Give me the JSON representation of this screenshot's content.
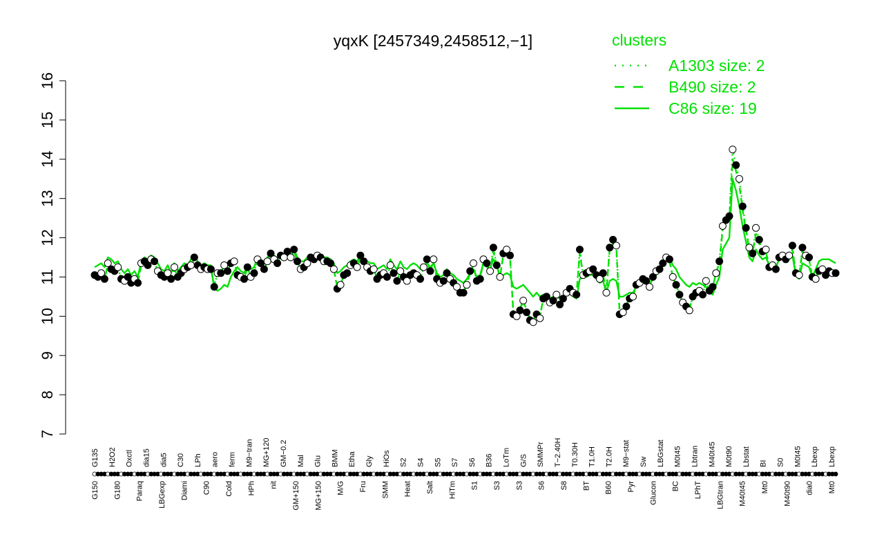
{
  "chart_data": {
    "type": "line",
    "title": "yqxK [2457349,2458512,−1]",
    "xlabel": "",
    "ylabel": "",
    "ylim": [
      7,
      16
    ],
    "yticks": [
      7,
      8,
      9,
      10,
      11,
      12,
      13,
      14,
      15,
      16
    ],
    "colors": {
      "accent": "#00e000",
      "axis": "#000000",
      "point_fill_dark": "#000000",
      "point_fill_light": "#ffffff"
    },
    "legend": {
      "title": "clusters",
      "placement": "top-right",
      "entries": [
        {
          "label": "A1303 size: 2",
          "style": "dotted"
        },
        {
          "label": "B490 size: 2",
          "style": "dashed"
        },
        {
          "label": "C86 size: 19",
          "style": "solid"
        }
      ]
    },
    "labels_top": [
      "G135",
      "H2O2",
      "Oxctl",
      "dia15",
      "dia5",
      "C30",
      "LPh",
      "aero",
      "ferm",
      "M9−tran",
      "MG+120",
      "GM−0.2",
      "Mal",
      "Glu",
      "BMM",
      "Etha",
      "Gly",
      "HiOs",
      "S2",
      "S4",
      "S5",
      "S7",
      "S6",
      "B36",
      "LoTm",
      "G/S",
      "SMMPr",
      "T−2.40H",
      "T0.30H",
      "T1.0H",
      "T2.0H",
      "M9−stat",
      "Sw",
      "LBGstat",
      "M0t45",
      "Lbtran",
      "M40t45",
      "M0t90",
      "Lbstat",
      "BI",
      "S0",
      "M0t45",
      "Lbexp",
      "Lbexp"
    ],
    "labels_bottom": [
      "G150",
      "G180",
      "Paraq",
      "LBGexp",
      "Diami",
      "C90",
      "Cold",
      "HPh",
      "nit",
      "GM+150",
      "MG+150",
      "M/G",
      "Fru",
      "SMM",
      "Heat",
      "Salt",
      "HiTm",
      "S1",
      "S3",
      "S3",
      "S6",
      "S8",
      "BT",
      "B60",
      "Pyr",
      "Glucon",
      "BC",
      "LPhT",
      "LBGtran",
      "M40t45",
      "Mt0",
      "M40t90",
      "dia0",
      "Mt0"
    ],
    "points": [
      [
        11.05,
        11.0,
        11.1,
        10.95,
        11.35,
        11.2,
        11.15,
        11.25,
        10.95,
        10.9,
        11.0,
        10.85,
        10.95,
        10.85,
        11.35,
        11.4,
        11.3,
        11.45,
        11.4,
        11.15,
        11.05,
        11.0,
        11.1,
        10.95,
        11.25,
        11.0,
        11.1,
        11.2,
        11.25,
        11.3,
        11.5,
        11.3,
        11.2,
        11.25,
        11.2,
        11.2,
        10.75,
        11.1,
        11.1,
        11.3,
        11.15,
        11.35,
        11.4,
        11.05,
        11.0,
        10.95,
        11.25,
        11.0,
        11.1,
        11.45,
        11.35,
        11.2,
        11.4,
        11.6,
        11.45,
        11.35,
        11.55,
        11.5,
        11.65,
        11.5,
        11.7,
        11.4,
        11.2,
        11.25,
        11.35,
        11.5,
        11.45,
        11.55,
        11.5,
        11.4,
        11.4,
        11.35,
        11.2,
        10.7,
        10.8,
        11.05,
        11.1,
        11.3,
        11.35,
        11.25,
        11.55,
        11.4,
        11.25,
        11.15,
        11.2,
        10.95,
        11.05,
        11.1,
        11.0,
        11.3,
        11.1,
        10.9,
        11.15,
        11.0,
        10.9,
        11.05,
        11.1,
        11.05,
        10.95,
        11.25,
        11.45,
        11.15,
        11.45,
        10.95,
        10.85,
        10.9,
        11.1,
        10.95,
        10.85,
        10.75,
        10.6,
        10.6,
        10.8,
        11.15,
        11.35,
        10.9,
        10.95,
        11.45,
        11.35,
        11.15,
        11.75,
        11.3,
        11.0,
        11.6,
        11.7,
        11.55,
        10.05,
        10.0,
        10.15,
        10.4,
        10.1,
        9.9,
        9.85,
        10.05,
        9.95,
        10.45,
        10.5,
        10.35,
        10.4,
        10.55,
        10.3,
        10.45,
        10.6,
        10.7,
        10.6,
        10.55,
        11.7,
        11.05,
        11.1,
        11.15,
        11.2,
        11.05,
        10.95,
        11.1,
        10.6,
        11.75,
        11.95,
        11.8,
        10.05,
        10.1,
        10.25,
        10.45,
        10.5,
        10.8,
        10.85,
        10.95,
        10.9,
        10.75,
        11.0,
        11.15,
        11.2,
        11.35,
        11.5,
        11.45,
        11.0,
        10.8,
        10.55,
        10.35,
        10.25,
        10.15,
        10.5,
        10.6,
        10.65,
        10.55,
        10.9,
        10.65,
        10.75,
        11.1,
        11.4,
        12.3,
        12.45,
        12.55,
        14.25,
        13.85,
        13.5,
        12.8,
        12.25,
        11.75,
        11.6,
        12.25,
        11.95,
        11.65,
        11.7,
        11.25,
        11.3,
        11.2,
        11.5,
        11.55,
        11.45,
        11.55,
        11.8,
        11.1,
        11.05,
        11.75,
        11.55,
        11.5,
        11.0,
        10.95,
        11.15,
        11.2,
        11.05,
        11.15,
        11.1,
        11.1
      ],
      [
        11.05,
        11.0,
        11.1,
        10.95,
        11.3,
        11.2,
        11.15,
        11.25,
        10.95,
        10.9,
        11.0,
        10.85,
        10.95,
        10.85,
        11.3,
        11.35,
        11.3,
        11.4,
        11.4,
        11.15,
        11.05,
        11.0,
        11.1,
        10.95,
        11.2,
        11.0,
        11.1,
        11.2,
        11.25,
        11.3,
        11.45,
        11.3,
        11.2,
        11.25,
        11.2,
        11.2,
        10.8,
        11.1,
        11.1,
        11.3,
        11.15,
        11.35,
        11.4,
        11.05,
        11.0,
        10.95,
        11.25,
        11.0,
        11.1,
        11.45,
        11.35,
        11.2,
        11.4,
        11.55,
        11.45,
        11.35,
        11.5,
        11.5,
        11.6,
        11.5,
        11.65,
        11.4,
        11.2,
        11.25,
        11.35,
        11.45,
        11.45,
        11.5,
        11.5,
        11.4,
        11.4,
        11.35,
        11.2,
        10.75,
        10.8,
        11.05,
        11.1,
        11.3,
        11.3,
        11.25,
        11.5,
        11.4,
        11.25,
        11.15,
        11.2,
        10.95,
        11.05,
        11.1,
        11.0,
        11.3,
        11.1,
        10.9,
        11.15,
        11.0,
        10.9,
        11.05,
        11.1,
        11.05,
        10.95,
        11.25,
        11.4,
        11.15,
        11.4,
        10.95,
        10.85,
        10.9,
        11.1,
        10.95,
        10.85,
        10.75,
        10.65,
        10.65,
        10.8,
        11.1,
        11.3,
        10.9,
        10.95,
        11.4,
        11.3,
        11.15,
        11.65,
        11.3,
        11.0,
        11.55,
        11.6,
        11.5,
        10.1,
        10.05,
        10.2,
        10.4,
        10.15,
        9.95,
        9.9,
        10.1,
        10.0,
        10.45,
        10.5,
        10.35,
        10.4,
        10.55,
        10.35,
        10.45,
        10.6,
        10.65,
        10.6,
        10.55,
        11.6,
        11.05,
        11.1,
        11.15,
        11.15,
        11.05,
        10.95,
        11.05,
        10.65,
        11.7,
        11.85,
        11.75,
        10.1,
        10.15,
        10.3,
        10.45,
        10.5,
        10.8,
        10.85,
        10.9,
        10.9,
        10.8,
        11.0,
        11.1,
        11.2,
        11.3,
        11.45,
        11.4,
        11.0,
        10.8,
        10.6,
        10.4,
        10.3,
        10.2,
        10.5,
        10.6,
        10.65,
        10.6,
        10.85,
        10.7,
        10.75,
        11.1,
        11.35,
        12.2,
        12.35,
        12.45,
        14.0,
        13.7,
        13.35,
        12.7,
        12.2,
        11.7,
        11.6,
        12.1,
        11.85,
        11.6,
        11.65,
        11.25,
        11.3,
        11.2,
        11.45,
        11.5,
        11.45,
        11.5,
        11.7,
        11.1,
        11.05,
        11.65,
        11.55,
        11.45,
        11.0,
        11.0,
        11.15,
        11.2,
        11.05,
        11.1,
        11.1,
        11.1
      ],
      [
        11.25,
        11.3,
        11.35,
        11.25,
        11.5,
        11.45,
        11.35,
        11.4,
        11.2,
        11.1,
        11.2,
        11.05,
        11.15,
        11.0,
        11.4,
        11.5,
        11.45,
        11.55,
        11.5,
        11.35,
        11.2,
        11.15,
        11.3,
        11.1,
        11.35,
        11.15,
        11.25,
        11.35,
        11.3,
        11.45,
        11.55,
        11.4,
        11.3,
        11.35,
        11.3,
        11.3,
        10.7,
        10.65,
        10.7,
        10.8,
        10.75,
        11.0,
        11.15,
        11.25,
        11.15,
        11.1,
        11.3,
        11.2,
        11.25,
        11.5,
        11.45,
        11.35,
        11.5,
        11.6,
        11.55,
        11.45,
        11.6,
        11.55,
        11.65,
        11.55,
        11.7,
        11.5,
        11.4,
        11.4,
        11.5,
        11.55,
        11.5,
        11.6,
        11.55,
        11.5,
        11.5,
        11.45,
        11.35,
        11.1,
        11.15,
        11.25,
        11.3,
        11.4,
        11.45,
        11.4,
        11.55,
        11.45,
        11.4,
        11.35,
        11.35,
        11.2,
        11.25,
        11.3,
        11.2,
        11.45,
        11.3,
        11.2,
        11.4,
        11.25,
        11.2,
        11.3,
        11.35,
        11.3,
        11.2,
        11.3,
        11.35,
        11.25,
        11.35,
        11.1,
        11.0,
        11.05,
        11.2,
        11.1,
        11.05,
        10.95,
        10.9,
        10.85,
        10.95,
        11.1,
        11.2,
        11.0,
        11.05,
        11.35,
        11.25,
        11.2,
        11.45,
        11.3,
        11.0,
        11.05,
        11.1,
        11.05,
        10.75,
        10.7,
        10.75,
        10.8,
        10.7,
        10.6,
        10.5,
        10.6,
        10.5,
        10.55,
        10.55,
        10.45,
        10.5,
        10.55,
        10.45,
        10.5,
        10.55,
        10.6,
        10.5,
        10.45,
        10.95,
        11.0,
        11.0,
        11.05,
        11.05,
        10.95,
        10.85,
        10.9,
        10.6,
        10.9,
        10.95,
        10.9,
        10.5,
        10.5,
        10.55,
        10.6,
        10.6,
        10.75,
        10.8,
        10.85,
        10.85,
        10.8,
        10.95,
        11.05,
        11.15,
        11.3,
        11.55,
        11.5,
        11.3,
        11.2,
        11.0,
        10.9,
        10.8,
        10.75,
        10.85,
        10.8,
        10.85,
        10.8,
        10.75,
        10.6,
        10.55,
        10.8,
        11.0,
        11.7,
        11.85,
        12.0,
        13.5,
        13.2,
        12.8,
        12.3,
        11.9,
        11.5,
        11.4,
        11.7,
        11.55,
        11.45,
        11.5,
        11.3,
        11.3,
        11.25,
        11.45,
        11.5,
        11.45,
        11.5,
        11.55,
        11.05,
        10.95,
        11.35,
        11.3,
        11.25,
        11.0,
        11.2,
        11.4,
        11.45,
        11.45,
        11.45,
        11.4,
        11.35
      ]
    ]
  }
}
